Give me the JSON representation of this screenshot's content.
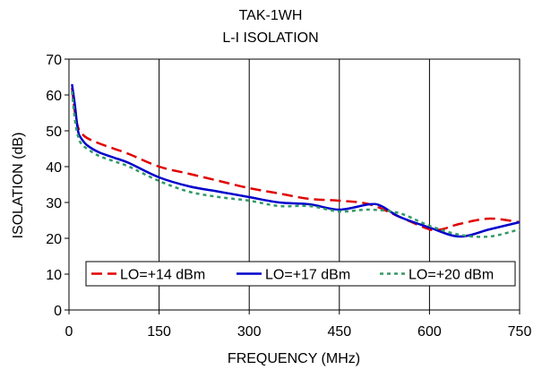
{
  "chart_data": {
    "type": "line",
    "title": "TAK-1WH",
    "subtitle": "L-I ISOLATION",
    "xlabel": "FREQUENCY (MHz)",
    "ylabel": "ISOLATION (dB)",
    "xlim": [
      0,
      750
    ],
    "ylim": [
      0,
      70
    ],
    "x_ticks": [
      "0",
      "150",
      "300",
      "450",
      "600",
      "750"
    ],
    "y_ticks": [
      "0",
      "10",
      "20",
      "30",
      "40",
      "50",
      "60",
      "70"
    ],
    "grid": "vertical",
    "legend": "bottom",
    "series": [
      {
        "name": "LO=+14 dBm",
        "color": "#e00000",
        "style": "dashed",
        "x": [
          5,
          10,
          15,
          20,
          30,
          50,
          75,
          100,
          150,
          200,
          250,
          300,
          350,
          400,
          450,
          500,
          550,
          600,
          620,
          650,
          700,
          750
        ],
        "y": [
          62,
          55,
          51,
          49.5,
          48,
          46.5,
          45,
          43.5,
          40,
          38,
          36,
          34,
          32.5,
          31,
          30.5,
          29.5,
          26,
          22.5,
          22.5,
          24,
          25.5,
          24.5
        ]
      },
      {
        "name": "LO=+17 dBm",
        "color": "#0000cc",
        "style": "solid",
        "x": [
          5,
          10,
          15,
          20,
          30,
          50,
          75,
          100,
          150,
          200,
          250,
          300,
          350,
          400,
          450,
          500,
          520,
          550,
          600,
          650,
          700,
          750
        ],
        "y": [
          63,
          57,
          50,
          48,
          46,
          44,
          42.5,
          41,
          37,
          34.5,
          33,
          31.5,
          30,
          29.5,
          28,
          29.5,
          29,
          26,
          23,
          20.5,
          22.5,
          24.5
        ]
      },
      {
        "name": "LO=+20 dBm",
        "color": "#339966",
        "style": "dotted",
        "x": [
          5,
          10,
          15,
          20,
          30,
          50,
          75,
          100,
          150,
          200,
          250,
          300,
          350,
          400,
          450,
          500,
          550,
          600,
          650,
          700,
          750
        ],
        "y": [
          61,
          53,
          48.5,
          46.5,
          45,
          43,
          41.5,
          40,
          36,
          33,
          31.5,
          30.5,
          29,
          29,
          27.5,
          28,
          27,
          23.5,
          21,
          20.5,
          22.5
        ]
      }
    ]
  }
}
